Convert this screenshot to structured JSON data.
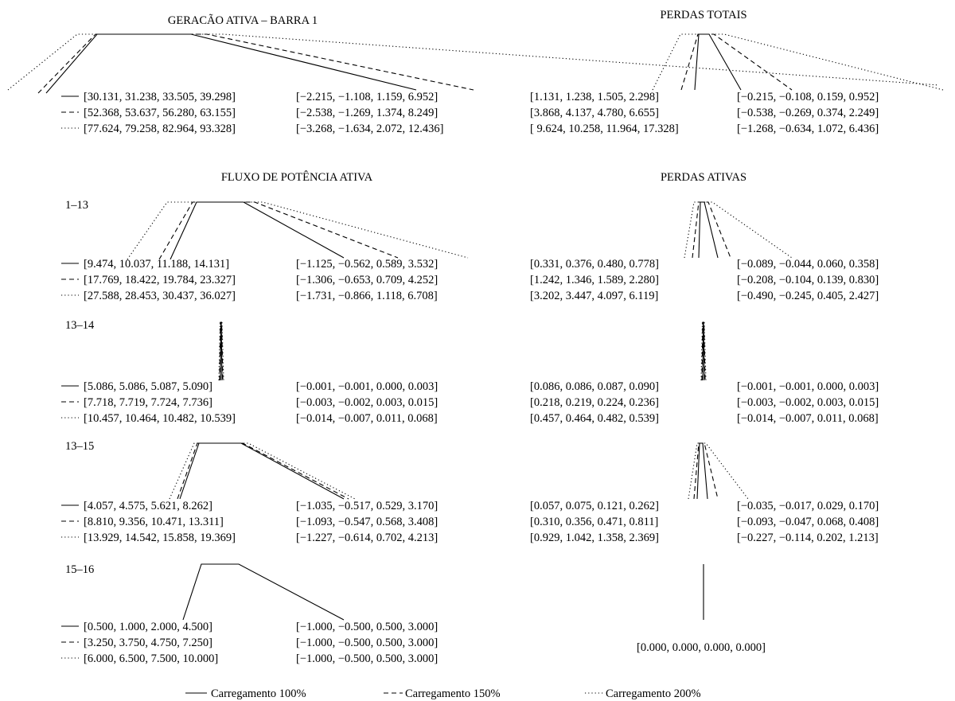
{
  "titles": {
    "geracao": "GERACÃO ATIVA – BARRA 1",
    "perdas_totais": "PERDAS TOTAIS",
    "fluxo": "FLUXO DE POTÊNCIA ATIVA",
    "perdas_ativas": "PERDAS ATIVAS"
  },
  "legend": [
    {
      "style": "solid",
      "label": "Carregamento 100%"
    },
    {
      "style": "dashed",
      "label": "Carregamento 150%"
    },
    {
      "style": "dotted",
      "label": "Carregamento 200%"
    }
  ],
  "panels": [
    {
      "id": "geracao",
      "left": {
        "rows": [
          {
            "style": "solid",
            "value": "[30.131, 31.238, 33.505, 39.298]",
            "interval": "[−2.215, −1.108, 1.159, 6.952]"
          },
          {
            "style": "dashed",
            "value": "[52.368, 53.637, 56.280, 63.155]",
            "interval": "[−2.538, −1.269, 1.374, 8.249]"
          },
          {
            "style": "dotted",
            "value": "[77.624, 79.258, 82.964, 93.328]",
            "interval": "[−3.268, −1.634, 2.072, 12.436]"
          }
        ]
      },
      "right": {
        "rows": [
          {
            "value": "[1.131, 1.238, 1.505, 2.298]",
            "interval": "[−0.215, −0.108, 0.159, 0.952]"
          },
          {
            "value": "[3.868, 4.137, 4.780, 6.655]",
            "interval": "[−0.538, −0.269, 0.374, 2.249]"
          },
          {
            "value": "[ 9.624, 10.258, 11.964, 17.328]",
            "interval": "[−1.268, −0.634, 1.072, 6.436]"
          }
        ]
      }
    },
    {
      "id": "line-1-13",
      "label": "1–13",
      "left": {
        "rows": [
          {
            "style": "solid",
            "value": "[9.474, 10.037, 11.188, 14.131]",
            "interval": "[−1.125, −0.562, 0.589, 3.532]"
          },
          {
            "style": "dashed",
            "value": "[17.769, 18.422, 19.784, 23.327]",
            "interval": "[−1.306, −0.653, 0.709, 4.252]"
          },
          {
            "style": "dotted",
            "value": "[27.588, 28.453, 30.437, 36.027]",
            "interval": "[−1.731, −0.866, 1.118, 6.708]"
          }
        ]
      },
      "right": {
        "rows": [
          {
            "value": "[0.331, 0.376, 0.480, 0.778]",
            "interval": "[−0.089, −0.044, 0.060, 0.358]"
          },
          {
            "value": "[1.242, 1.346, 1.589, 2.280]",
            "interval": "[−0.208, −0.104, 0.139, 0.830]"
          },
          {
            "value": "[3.202, 3.447, 4.097, 6.119]",
            "interval": "[−0.490, −0.245, 0.405, 2.427]"
          }
        ]
      }
    },
    {
      "id": "line-13-14",
      "label": "13–14",
      "left": {
        "rows": [
          {
            "style": "solid",
            "value": "[5.086, 5.086, 5.087, 5.090]",
            "interval": "[−0.001, −0.001, 0.000, 0.003]"
          },
          {
            "style": "dashed",
            "value": "[7.718, 7.719, 7.724, 7.736]",
            "interval": "[−0.003, −0.002, 0.003, 0.015]"
          },
          {
            "style": "dotted",
            "value": "[10.457, 10.464, 10.482, 10.539]",
            "interval": "[−0.014, −0.007, 0.011, 0.068]"
          }
        ]
      },
      "right": {
        "rows": [
          {
            "value": "[0.086, 0.086, 0.087, 0.090]",
            "interval": "[−0.001, −0.001, 0.000, 0.003]"
          },
          {
            "value": "[0.218, 0.219, 0.224, 0.236]",
            "interval": "[−0.003, −0.002, 0.003, 0.015]"
          },
          {
            "value": "[0.457, 0.464, 0.482, 0.539]",
            "interval": "[−0.014, −0.007, 0.011, 0.068]"
          }
        ]
      }
    },
    {
      "id": "line-13-15",
      "label": "13–15",
      "left": {
        "rows": [
          {
            "style": "solid",
            "value": "[4.057, 4.575, 5.621, 8.262]",
            "interval": "[−1.035, −0.517, 0.529, 3.170]"
          },
          {
            "style": "dashed",
            "value": "[8.810, 9.356, 10.471, 13.311]",
            "interval": "[−1.093, −0.547, 0.568, 3.408]"
          },
          {
            "style": "dotted",
            "value": "[13.929, 14.542, 15.858, 19.369]",
            "interval": "[−1.227, −0.614, 0.702, 4.213]"
          }
        ]
      },
      "right": {
        "rows": [
          {
            "value": "[0.057, 0.075, 0.121, 0.262]",
            "interval": "[−0.035, −0.017, 0.029, 0.170]"
          },
          {
            "value": "[0.310, 0.356, 0.471, 0.811]",
            "interval": "[−0.093, −0.047, 0.068, 0.408]"
          },
          {
            "value": "[0.929, 1.042, 1.358, 2.369]",
            "interval": "[−0.227, −0.114, 0.202, 1.213]"
          }
        ]
      }
    },
    {
      "id": "line-15-16",
      "label": "15–16",
      "left": {
        "rows": [
          {
            "style": "solid",
            "value": "[0.500, 1.000, 2.000, 4.500]",
            "interval": "[−1.000, −0.500, 0.500, 3.000]"
          },
          {
            "style": "dashed",
            "value": "[3.250, 3.750, 4.750, 7.250]",
            "interval": "[−1.000, −0.500, 0.500, 3.000]"
          },
          {
            "style": "dotted",
            "value": "[6.000, 6.500, 7.500, 10.000]",
            "interval": "[−1.000, −0.500, 0.500, 3.000]"
          }
        ]
      },
      "right": {
        "single": "[0.000, 0.000, 0.000, 0.000]"
      }
    }
  ]
}
